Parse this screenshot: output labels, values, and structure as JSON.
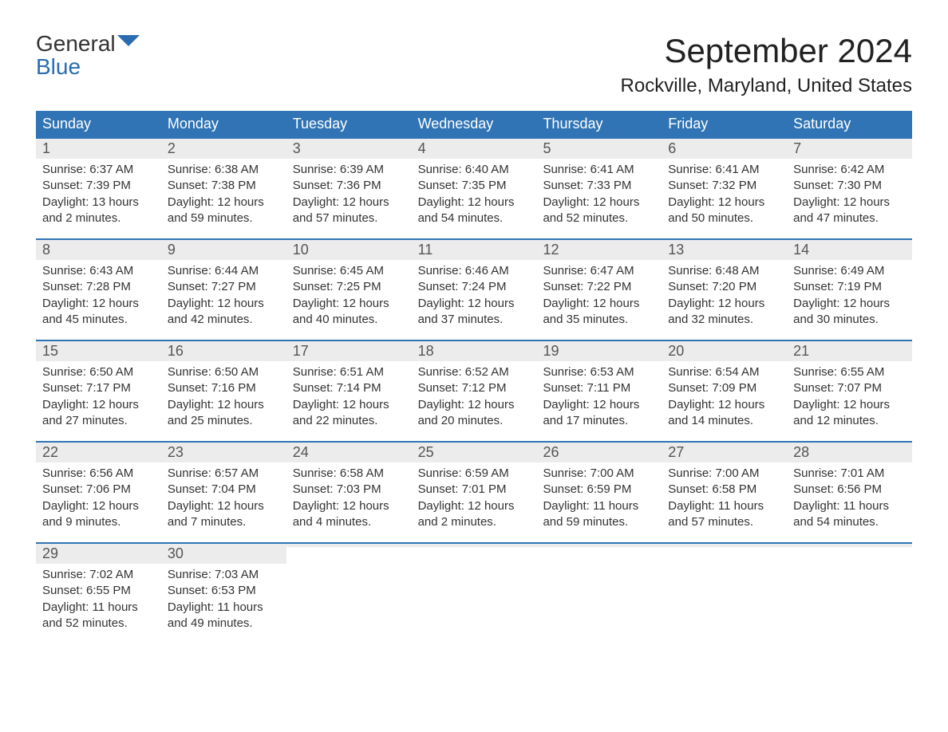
{
  "logo": {
    "general": "General",
    "blue": "Blue"
  },
  "title": "September 2024",
  "location": "Rockville, Maryland, United States",
  "colors": {
    "header_bg": "#3074b5",
    "header_text": "#ffffff",
    "day_number_bg": "#ececec",
    "day_number_text": "#555555",
    "content_text": "#333333",
    "border": "#3074b5",
    "logo_blue": "#2a6cb0",
    "logo_gray": "#333333"
  },
  "day_headers": [
    "Sunday",
    "Monday",
    "Tuesday",
    "Wednesday",
    "Thursday",
    "Friday",
    "Saturday"
  ],
  "weeks": [
    [
      {
        "num": "1",
        "sunrise": "Sunrise: 6:37 AM",
        "sunset": "Sunset: 7:39 PM",
        "daylight1": "Daylight: 13 hours",
        "daylight2": "and 2 minutes."
      },
      {
        "num": "2",
        "sunrise": "Sunrise: 6:38 AM",
        "sunset": "Sunset: 7:38 PM",
        "daylight1": "Daylight: 12 hours",
        "daylight2": "and 59 minutes."
      },
      {
        "num": "3",
        "sunrise": "Sunrise: 6:39 AM",
        "sunset": "Sunset: 7:36 PM",
        "daylight1": "Daylight: 12 hours",
        "daylight2": "and 57 minutes."
      },
      {
        "num": "4",
        "sunrise": "Sunrise: 6:40 AM",
        "sunset": "Sunset: 7:35 PM",
        "daylight1": "Daylight: 12 hours",
        "daylight2": "and 54 minutes."
      },
      {
        "num": "5",
        "sunrise": "Sunrise: 6:41 AM",
        "sunset": "Sunset: 7:33 PM",
        "daylight1": "Daylight: 12 hours",
        "daylight2": "and 52 minutes."
      },
      {
        "num": "6",
        "sunrise": "Sunrise: 6:41 AM",
        "sunset": "Sunset: 7:32 PM",
        "daylight1": "Daylight: 12 hours",
        "daylight2": "and 50 minutes."
      },
      {
        "num": "7",
        "sunrise": "Sunrise: 6:42 AM",
        "sunset": "Sunset: 7:30 PM",
        "daylight1": "Daylight: 12 hours",
        "daylight2": "and 47 minutes."
      }
    ],
    [
      {
        "num": "8",
        "sunrise": "Sunrise: 6:43 AM",
        "sunset": "Sunset: 7:28 PM",
        "daylight1": "Daylight: 12 hours",
        "daylight2": "and 45 minutes."
      },
      {
        "num": "9",
        "sunrise": "Sunrise: 6:44 AM",
        "sunset": "Sunset: 7:27 PM",
        "daylight1": "Daylight: 12 hours",
        "daylight2": "and 42 minutes."
      },
      {
        "num": "10",
        "sunrise": "Sunrise: 6:45 AM",
        "sunset": "Sunset: 7:25 PM",
        "daylight1": "Daylight: 12 hours",
        "daylight2": "and 40 minutes."
      },
      {
        "num": "11",
        "sunrise": "Sunrise: 6:46 AM",
        "sunset": "Sunset: 7:24 PM",
        "daylight1": "Daylight: 12 hours",
        "daylight2": "and 37 minutes."
      },
      {
        "num": "12",
        "sunrise": "Sunrise: 6:47 AM",
        "sunset": "Sunset: 7:22 PM",
        "daylight1": "Daylight: 12 hours",
        "daylight2": "and 35 minutes."
      },
      {
        "num": "13",
        "sunrise": "Sunrise: 6:48 AM",
        "sunset": "Sunset: 7:20 PM",
        "daylight1": "Daylight: 12 hours",
        "daylight2": "and 32 minutes."
      },
      {
        "num": "14",
        "sunrise": "Sunrise: 6:49 AM",
        "sunset": "Sunset: 7:19 PM",
        "daylight1": "Daylight: 12 hours",
        "daylight2": "and 30 minutes."
      }
    ],
    [
      {
        "num": "15",
        "sunrise": "Sunrise: 6:50 AM",
        "sunset": "Sunset: 7:17 PM",
        "daylight1": "Daylight: 12 hours",
        "daylight2": "and 27 minutes."
      },
      {
        "num": "16",
        "sunrise": "Sunrise: 6:50 AM",
        "sunset": "Sunset: 7:16 PM",
        "daylight1": "Daylight: 12 hours",
        "daylight2": "and 25 minutes."
      },
      {
        "num": "17",
        "sunrise": "Sunrise: 6:51 AM",
        "sunset": "Sunset: 7:14 PM",
        "daylight1": "Daylight: 12 hours",
        "daylight2": "and 22 minutes."
      },
      {
        "num": "18",
        "sunrise": "Sunrise: 6:52 AM",
        "sunset": "Sunset: 7:12 PM",
        "daylight1": "Daylight: 12 hours",
        "daylight2": "and 20 minutes."
      },
      {
        "num": "19",
        "sunrise": "Sunrise: 6:53 AM",
        "sunset": "Sunset: 7:11 PM",
        "daylight1": "Daylight: 12 hours",
        "daylight2": "and 17 minutes."
      },
      {
        "num": "20",
        "sunrise": "Sunrise: 6:54 AM",
        "sunset": "Sunset: 7:09 PM",
        "daylight1": "Daylight: 12 hours",
        "daylight2": "and 14 minutes."
      },
      {
        "num": "21",
        "sunrise": "Sunrise: 6:55 AM",
        "sunset": "Sunset: 7:07 PM",
        "daylight1": "Daylight: 12 hours",
        "daylight2": "and 12 minutes."
      }
    ],
    [
      {
        "num": "22",
        "sunrise": "Sunrise: 6:56 AM",
        "sunset": "Sunset: 7:06 PM",
        "daylight1": "Daylight: 12 hours",
        "daylight2": "and 9 minutes."
      },
      {
        "num": "23",
        "sunrise": "Sunrise: 6:57 AM",
        "sunset": "Sunset: 7:04 PM",
        "daylight1": "Daylight: 12 hours",
        "daylight2": "and 7 minutes."
      },
      {
        "num": "24",
        "sunrise": "Sunrise: 6:58 AM",
        "sunset": "Sunset: 7:03 PM",
        "daylight1": "Daylight: 12 hours",
        "daylight2": "and 4 minutes."
      },
      {
        "num": "25",
        "sunrise": "Sunrise: 6:59 AM",
        "sunset": "Sunset: 7:01 PM",
        "daylight1": "Daylight: 12 hours",
        "daylight2": "and 2 minutes."
      },
      {
        "num": "26",
        "sunrise": "Sunrise: 7:00 AM",
        "sunset": "Sunset: 6:59 PM",
        "daylight1": "Daylight: 11 hours",
        "daylight2": "and 59 minutes."
      },
      {
        "num": "27",
        "sunrise": "Sunrise: 7:00 AM",
        "sunset": "Sunset: 6:58 PM",
        "daylight1": "Daylight: 11 hours",
        "daylight2": "and 57 minutes."
      },
      {
        "num": "28",
        "sunrise": "Sunrise: 7:01 AM",
        "sunset": "Sunset: 6:56 PM",
        "daylight1": "Daylight: 11 hours",
        "daylight2": "and 54 minutes."
      }
    ],
    [
      {
        "num": "29",
        "sunrise": "Sunrise: 7:02 AM",
        "sunset": "Sunset: 6:55 PM",
        "daylight1": "Daylight: 11 hours",
        "daylight2": "and 52 minutes."
      },
      {
        "num": "30",
        "sunrise": "Sunrise: 7:03 AM",
        "sunset": "Sunset: 6:53 PM",
        "daylight1": "Daylight: 11 hours",
        "daylight2": "and 49 minutes."
      },
      {
        "empty": true
      },
      {
        "empty": true
      },
      {
        "empty": true
      },
      {
        "empty": true
      },
      {
        "empty": true
      }
    ]
  ]
}
